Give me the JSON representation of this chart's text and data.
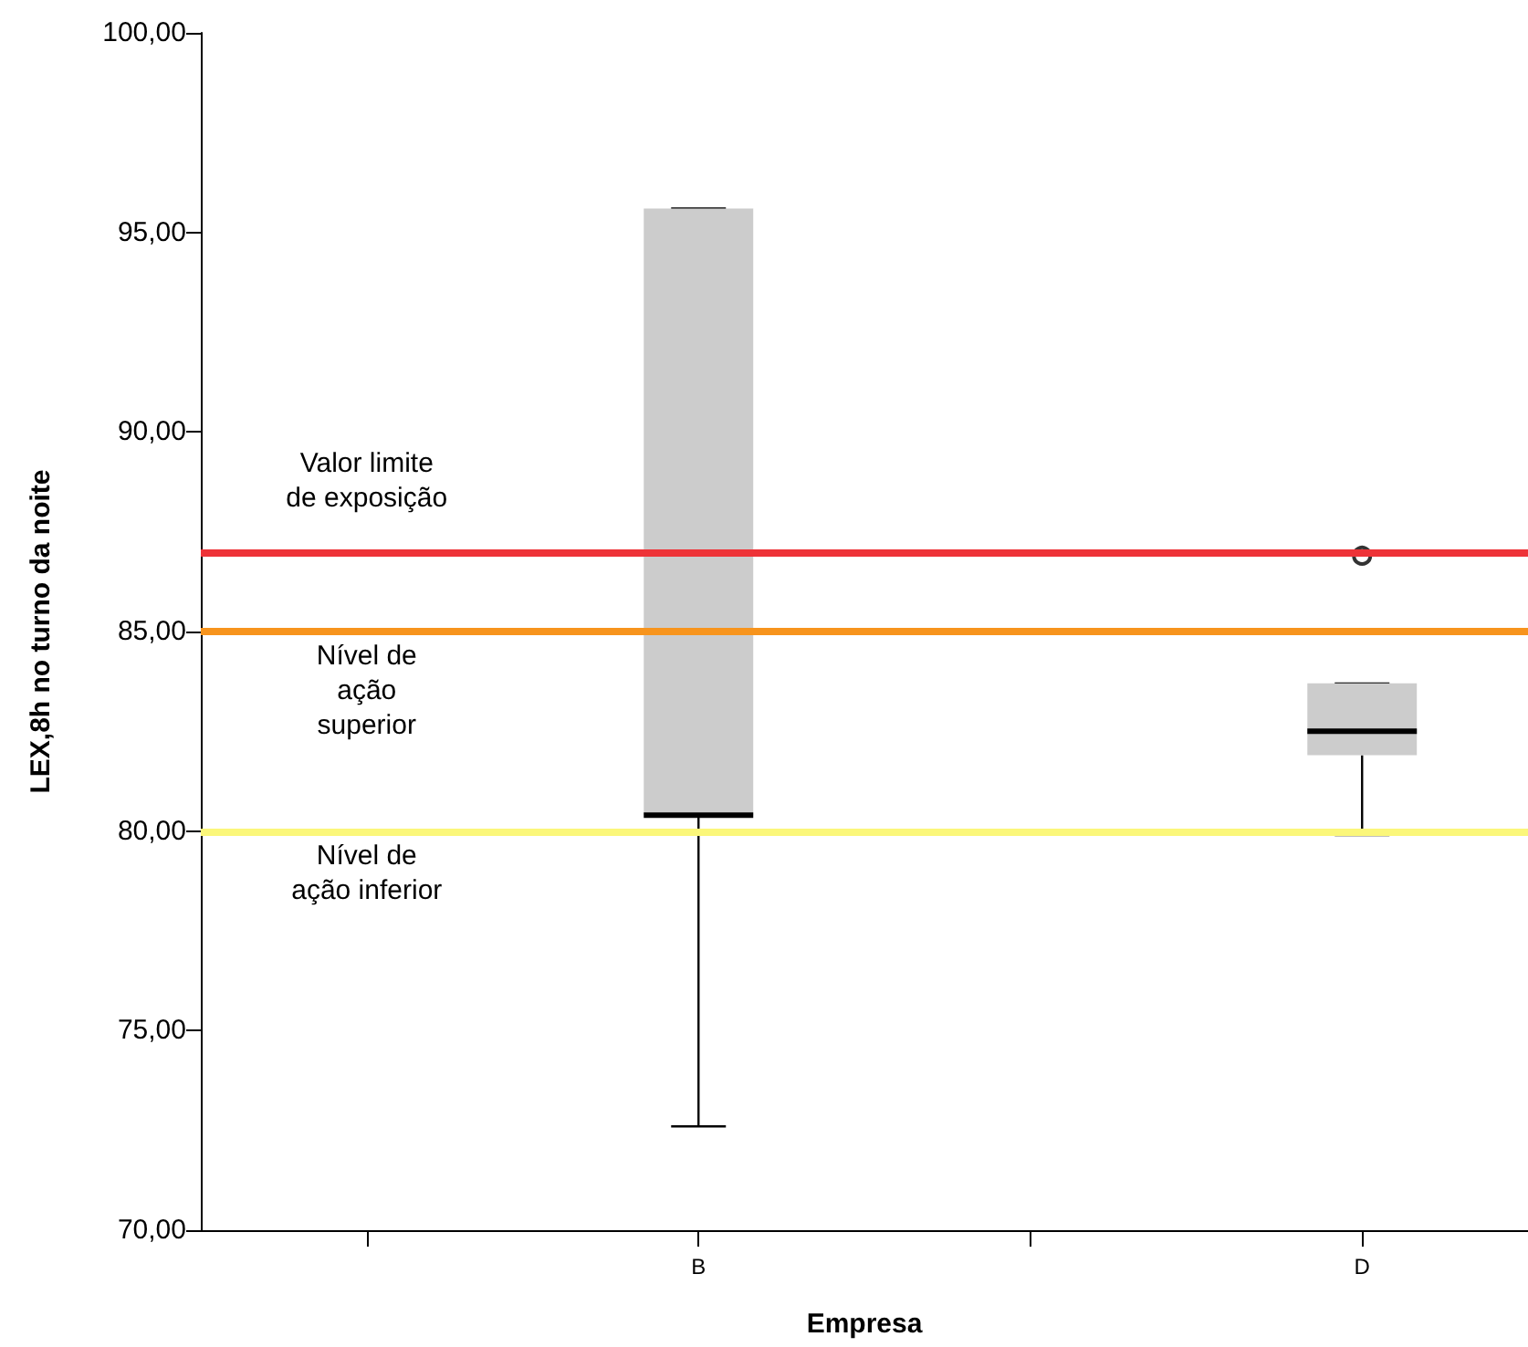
{
  "chart_data": {
    "type": "box",
    "xlabel": "Empresa",
    "ylabel": "LEX,8h no turno da noite",
    "categories": [
      null,
      "B",
      null,
      "D"
    ],
    "ylim": [
      70,
      100
    ],
    "yticks": [
      {
        "value": 70,
        "label": "70,00"
      },
      {
        "value": 75,
        "label": "75,00"
      },
      {
        "value": 80,
        "label": "80,00"
      },
      {
        "value": 85,
        "label": "85,00"
      },
      {
        "value": 90,
        "label": "90,00"
      },
      {
        "value": 95,
        "label": "95,00"
      },
      {
        "value": 100,
        "label": "100,00"
      }
    ],
    "grid": false,
    "series": [
      {
        "color": "#cccccc",
        "boxes": [
          null,
          {
            "low": 72.6,
            "q1": 80.4,
            "median": 80.4,
            "q3": 95.6,
            "high": 95.6
          },
          null,
          {
            "low": 79.9,
            "q1": 81.9,
            "median": 82.5,
            "q3": 83.7,
            "high": 83.7
          }
        ]
      },
      {
        "type": "scatter",
        "color": "#000000",
        "x": [
          "D"
        ],
        "values": [
          86.9
        ],
        "marker": "circle"
      }
    ],
    "ref_lines": [
      {
        "axis": "y",
        "value": 87,
        "label": "Valor limite\nde exposição",
        "color": "#ee3338"
      },
      {
        "axis": "y",
        "value": 85,
        "label": "Nível de\nação\nsuperior",
        "color": "#f7941d"
      },
      {
        "axis": "y",
        "value": 80,
        "label": "Nível de\nação inferior",
        "color": "#fbf77a"
      }
    ]
  }
}
